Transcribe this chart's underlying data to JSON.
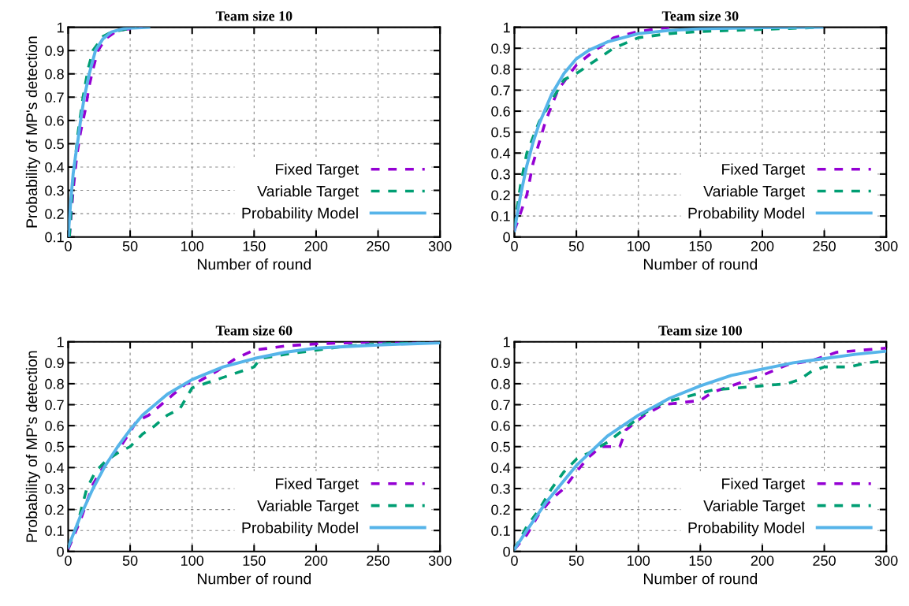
{
  "chart_data": [
    {
      "type": "line",
      "title": "Team size 10",
      "xlabel": "Number of round",
      "ylabel": "Probability of MP's detection",
      "xlim": [
        0,
        300
      ],
      "xticks": [
        0,
        50,
        100,
        150,
        200,
        250,
        300
      ],
      "ylim": [
        0.1,
        1
      ],
      "yticks": [
        0.1,
        0.2,
        0.3,
        0.4,
        0.5,
        0.6,
        0.7,
        0.8,
        0.9,
        1
      ],
      "grid": true,
      "legend": "bottom right",
      "series": [
        {
          "name": "Fixed Target",
          "color": "#9400d3",
          "line_style": "dashed",
          "x": [
            1,
            4,
            7,
            10,
            14,
            17,
            20,
            24,
            30,
            38,
            45,
            60
          ],
          "values": [
            0.1,
            0.3,
            0.45,
            0.55,
            0.65,
            0.75,
            0.82,
            0.9,
            0.95,
            0.98,
            0.99,
            1.0
          ]
        },
        {
          "name": "Variable Target",
          "color": "#009e73",
          "line_style": "dashed",
          "x": [
            1,
            4,
            8,
            12,
            16,
            20,
            28,
            35,
            45,
            55
          ],
          "values": [
            0.1,
            0.35,
            0.55,
            0.7,
            0.82,
            0.9,
            0.96,
            0.98,
            0.99,
            1.0
          ]
        },
        {
          "name": "Probability Model",
          "color": "#56b4e9",
          "line_style": "solid",
          "x": [
            0,
            2,
            4,
            6,
            8,
            10,
            13,
            17,
            22,
            28,
            35,
            45,
            65
          ],
          "values": [
            0.1,
            0.25,
            0.37,
            0.45,
            0.52,
            0.6,
            0.7,
            0.8,
            0.9,
            0.95,
            0.98,
            0.995,
            1.0
          ]
        }
      ]
    },
    {
      "type": "line",
      "title": "Team size 30",
      "xlabel": "Number of round",
      "xlim": [
        0,
        300
      ],
      "xticks": [
        0,
        50,
        100,
        150,
        200,
        250,
        300
      ],
      "ylim": [
        0,
        1
      ],
      "yticks": [
        0,
        0.1,
        0.2,
        0.3,
        0.4,
        0.5,
        0.6,
        0.7,
        0.8,
        0.9,
        1
      ],
      "grid": true,
      "legend": "bottom right",
      "series": [
        {
          "name": "Fixed Target",
          "color": "#9400d3",
          "line_style": "dashed",
          "x": [
            0,
            10,
            15,
            25,
            35,
            50,
            65,
            80,
            100,
            125
          ],
          "values": [
            0.03,
            0.2,
            0.35,
            0.55,
            0.7,
            0.82,
            0.89,
            0.95,
            0.98,
            1.0
          ]
        },
        {
          "name": "Variable Target",
          "color": "#009e73",
          "line_style": "dashed",
          "x": [
            0,
            5,
            10,
            20,
            30,
            40,
            50,
            60,
            70,
            80,
            100,
            125,
            150,
            200,
            248
          ],
          "values": [
            0.05,
            0.25,
            0.4,
            0.55,
            0.65,
            0.75,
            0.78,
            0.82,
            0.86,
            0.9,
            0.95,
            0.97,
            0.98,
            0.99,
            1.0
          ]
        },
        {
          "name": "Probability Model",
          "color": "#56b4e9",
          "line_style": "solid",
          "x": [
            0,
            5,
            10,
            15,
            20,
            30,
            40,
            50,
            60,
            75,
            100,
            125,
            150,
            200,
            248
          ],
          "values": [
            0.03,
            0.2,
            0.34,
            0.45,
            0.54,
            0.68,
            0.78,
            0.85,
            0.89,
            0.93,
            0.97,
            0.985,
            0.993,
            0.998,
            1.0
          ]
        }
      ]
    },
    {
      "type": "line",
      "title": "Team size 60",
      "xlabel": "Number of round",
      "ylabel": "Probability of MP's detection",
      "xlim": [
        0,
        300
      ],
      "xticks": [
        0,
        50,
        100,
        150,
        200,
        250,
        300
      ],
      "ylim": [
        0,
        1
      ],
      "yticks": [
        0,
        0.1,
        0.2,
        0.3,
        0.4,
        0.5,
        0.6,
        0.7,
        0.8,
        0.9,
        1
      ],
      "grid": true,
      "legend": "bottom right",
      "series": [
        {
          "name": "Fixed Target",
          "color": "#9400d3",
          "line_style": "dashed",
          "x": [
            0,
            10,
            20,
            30,
            40,
            50,
            55,
            65,
            75,
            85,
            95,
            105,
            120,
            135,
            150,
            175,
            200,
            250,
            300
          ],
          "values": [
            0.01,
            0.15,
            0.32,
            0.42,
            0.48,
            0.57,
            0.62,
            0.65,
            0.7,
            0.75,
            0.8,
            0.81,
            0.86,
            0.92,
            0.96,
            0.98,
            0.99,
            1.0,
            1.0
          ]
        },
        {
          "name": "Variable Target",
          "color": "#009e73",
          "line_style": "dashed",
          "x": [
            0,
            7,
            15,
            22,
            30,
            40,
            50,
            60,
            70,
            80,
            90,
            97,
            100,
            120,
            140,
            150,
            155,
            175,
            200,
            225,
            250,
            300
          ],
          "values": [
            0.02,
            0.12,
            0.3,
            0.38,
            0.43,
            0.47,
            0.5,
            0.56,
            0.6,
            0.65,
            0.68,
            0.75,
            0.78,
            0.82,
            0.86,
            0.88,
            0.92,
            0.94,
            0.96,
            0.98,
            0.99,
            1.0
          ]
        },
        {
          "name": "Probability Model",
          "color": "#56b4e9",
          "line_style": "solid",
          "x": [
            0,
            10,
            20,
            30,
            40,
            50,
            60,
            70,
            80,
            100,
            125,
            150,
            175,
            200,
            250,
            300
          ],
          "values": [
            0.02,
            0.17,
            0.3,
            0.41,
            0.5,
            0.58,
            0.65,
            0.7,
            0.75,
            0.82,
            0.88,
            0.92,
            0.95,
            0.97,
            0.985,
            0.995
          ]
        }
      ]
    },
    {
      "type": "line",
      "title": "Team size 100",
      "xlabel": "Number of round",
      "xlim": [
        0,
        300
      ],
      "xticks": [
        0,
        50,
        100,
        150,
        200,
        250,
        300
      ],
      "ylim": [
        0,
        1
      ],
      "yticks": [
        0,
        0.1,
        0.2,
        0.3,
        0.4,
        0.5,
        0.6,
        0.7,
        0.8,
        0.9,
        1
      ],
      "grid": true,
      "legend": "bottom right",
      "series": [
        {
          "name": "Fixed Target",
          "color": "#9400d3",
          "line_style": "dashed",
          "x": [
            0,
            10,
            20,
            30,
            40,
            50,
            60,
            70,
            85,
            90,
            105,
            120,
            135,
            150,
            160,
            175,
            190,
            200,
            220,
            240,
            260,
            280,
            300
          ],
          "values": [
            0.01,
            0.08,
            0.18,
            0.25,
            0.3,
            0.38,
            0.45,
            0.5,
            0.5,
            0.58,
            0.65,
            0.7,
            0.71,
            0.72,
            0.76,
            0.79,
            0.82,
            0.84,
            0.89,
            0.91,
            0.95,
            0.96,
            0.97
          ]
        },
        {
          "name": "Variable Target",
          "color": "#009e73",
          "line_style": "dashed",
          "x": [
            0,
            10,
            20,
            30,
            40,
            50,
            60,
            75,
            90,
            105,
            120,
            140,
            160,
            180,
            200,
            220,
            230,
            240,
            250,
            270,
            285,
            300
          ],
          "values": [
            0.01,
            0.12,
            0.2,
            0.3,
            0.38,
            0.44,
            0.47,
            0.52,
            0.59,
            0.66,
            0.71,
            0.74,
            0.77,
            0.78,
            0.79,
            0.8,
            0.82,
            0.86,
            0.88,
            0.88,
            0.9,
            0.91
          ]
        },
        {
          "name": "Probability Model",
          "color": "#56b4e9",
          "line_style": "solid",
          "x": [
            0,
            10,
            25,
            50,
            75,
            100,
            125,
            150,
            175,
            200,
            225,
            250,
            275,
            300
          ],
          "values": [
            0.01,
            0.1,
            0.23,
            0.41,
            0.55,
            0.65,
            0.73,
            0.79,
            0.84,
            0.87,
            0.9,
            0.92,
            0.94,
            0.955
          ]
        }
      ]
    }
  ]
}
